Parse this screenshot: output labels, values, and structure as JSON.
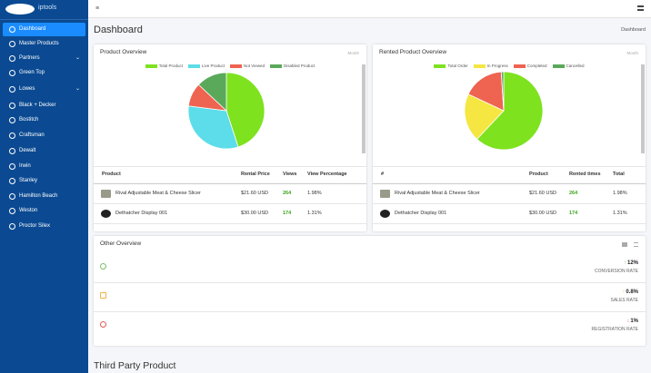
{
  "sidebar": {
    "brand": "iptools",
    "menu": [
      "Dashboard",
      "Master Products",
      "Partners",
      "Green Top",
      "Lowes",
      "Black + Decker",
      "Bostitch",
      "Craftsman",
      "Dewalt",
      "Irwin",
      "Stanley",
      "Hamilton Beach",
      "Weston",
      "Proctor Silex"
    ]
  },
  "header": {
    "title": "Dashboard",
    "breadcrumb": "Dashboard"
  },
  "product_overview": {
    "title": "Product Overview",
    "filter": "Month",
    "chart": {
      "type": "pie",
      "categories": [
        "Total Product",
        "Live Product",
        "Not Viewed",
        "Disabled Product"
      ],
      "values": [
        45,
        32,
        10,
        13
      ],
      "colors": [
        "#7ee21f",
        "#5cdde9",
        "#ef6351",
        "#5aa95b"
      ]
    },
    "table": {
      "columns": [
        "Product",
        "Rental Price",
        "Views",
        "View Percentage"
      ],
      "rows": [
        [
          "Rival Adjustable Meat & Cheese Slicer",
          "$21.60 USD",
          "264",
          "1.98%"
        ],
        [
          "Dethatcher Display 001",
          "$30.00 USD",
          "174",
          "1.31%"
        ]
      ]
    }
  },
  "rented_overview": {
    "title": "Rented Product Overview",
    "filter": "Month",
    "chart": {
      "type": "pie",
      "categories": [
        "Total Order",
        "In Progress",
        "Completed",
        "Cancelled"
      ],
      "values": [
        62,
        20,
        17,
        1
      ],
      "colors": [
        "#7ee21f",
        "#f5e642",
        "#ef6351",
        "#5aa95b"
      ]
    },
    "table": {
      "columns": [
        "#",
        "Product",
        "Rented times",
        "Total"
      ],
      "rows": [
        [
          "Rival Adjustable Meat & Cheese Slicer",
          "$21.60 USD",
          "264",
          "1.98%"
        ],
        [
          "Dethatcher Display 001",
          "$30.00 USD",
          "174",
          "1.31%"
        ]
      ]
    }
  },
  "other_overview": {
    "title": "Other Overview",
    "stats": [
      {
        "value": "12%",
        "label": "CONVERSION RATE"
      },
      {
        "value": "0.8%",
        "label": "SALES RATE"
      },
      {
        "value": "1%",
        "label": "REGISTRATION RATE"
      }
    ]
  },
  "section_title": "Third Party Product"
}
